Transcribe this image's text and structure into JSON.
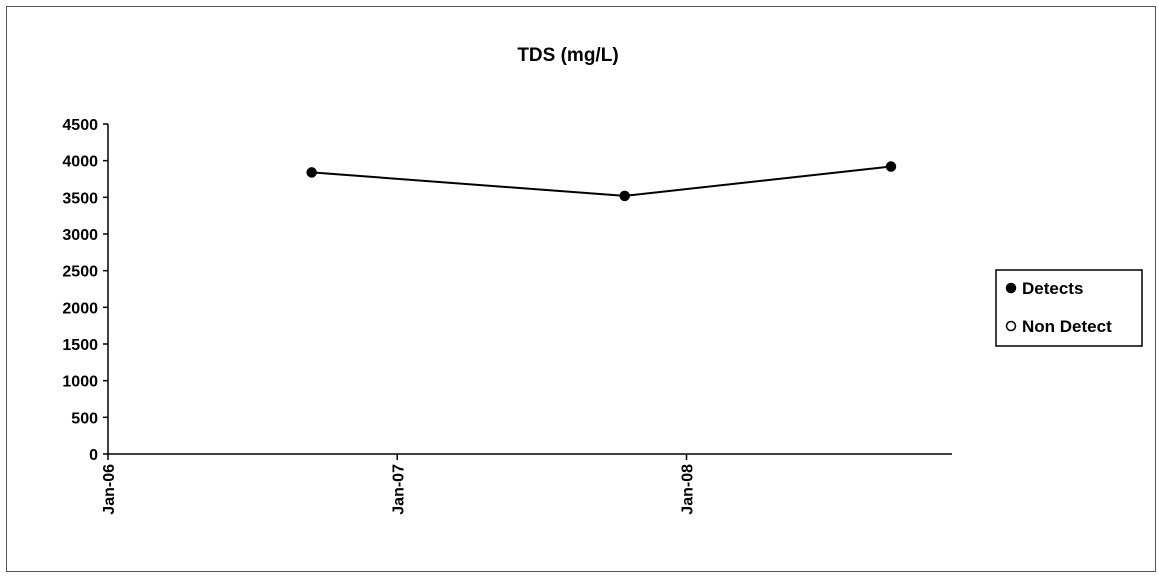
{
  "chart_data": {
    "type": "line",
    "title": "TDS (mg/L)",
    "xlabel": "",
    "ylabel": "",
    "x_ticks": [
      "Jan-06",
      "Jan-07",
      "Jan-08"
    ],
    "x_range": [
      "2006-01-01",
      "2008-12-01"
    ],
    "ylim": [
      0,
      4500
    ],
    "y_ticks": [
      0,
      500,
      1000,
      1500,
      2000,
      2500,
      3000,
      3500,
      4000,
      4500
    ],
    "grid": false,
    "legend_position": "right",
    "series": [
      {
        "name": "Detects",
        "marker": "filled-circle",
        "color": "#000000",
        "points": [
          {
            "x": "2006-09-15",
            "y": 3840
          },
          {
            "x": "2007-10-15",
            "y": 3520
          },
          {
            "x": "2008-09-15",
            "y": 3920
          }
        ]
      },
      {
        "name": "Non Detect",
        "marker": "open-circle",
        "color": "#000000",
        "points": []
      }
    ]
  }
}
